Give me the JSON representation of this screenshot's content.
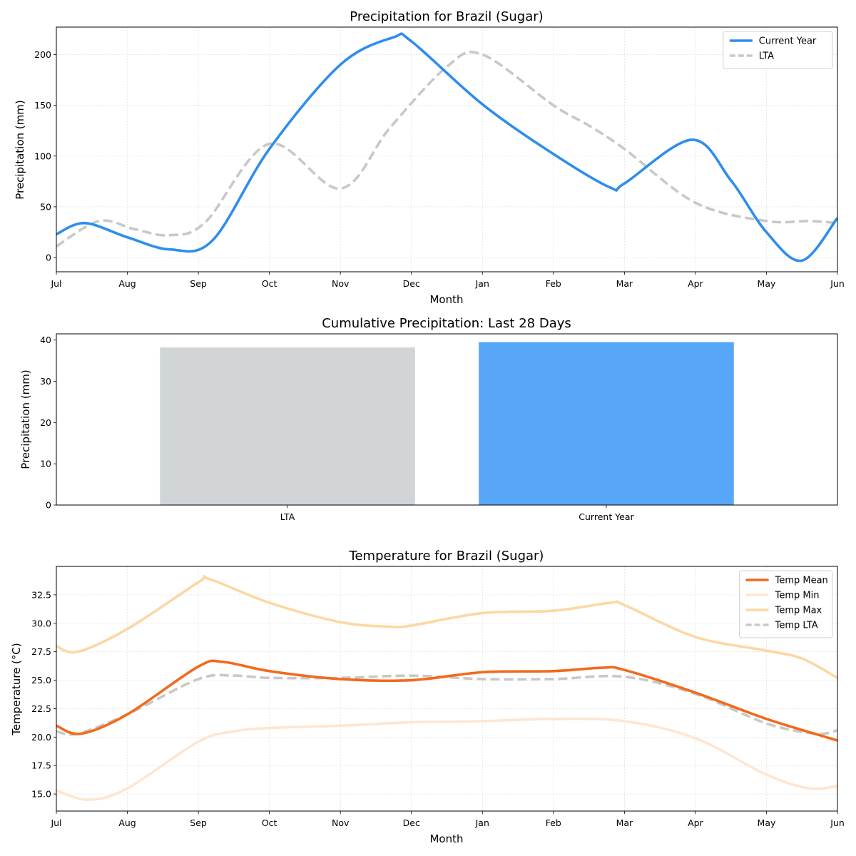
{
  "chart_data": [
    {
      "type": "line",
      "title": "Precipitation for Brazil (Sugar)",
      "xlabel": "Month",
      "ylabel": "Precipitation (mm)",
      "categories": [
        "Jul",
        "Aug",
        "Sep",
        "Oct",
        "Nov",
        "Dec",
        "Jan",
        "Feb",
        "Mar",
        "Apr",
        "May",
        "Jun"
      ],
      "ylim": [
        -14,
        227
      ],
      "yticks": [
        0,
        50,
        100,
        150,
        200
      ],
      "grid": true,
      "legend_position": "top-right",
      "series": [
        {
          "name": "Current Year",
          "color": "#2f8ded",
          "dash": false,
          "points": [
            [
              0,
              23
            ],
            [
              0.4,
              34
            ],
            [
              1,
              20
            ],
            [
              1.6,
              8
            ],
            [
              2.2,
              17
            ],
            [
              3,
              107
            ],
            [
              4,
              190
            ],
            [
              4.75,
              217
            ],
            [
              5,
              213
            ],
            [
              6,
              151
            ],
            [
              7,
              102
            ],
            [
              7.8,
              69
            ],
            [
              8,
              73
            ],
            [
              8.95,
              116
            ],
            [
              9.5,
              76
            ],
            [
              10,
              25
            ],
            [
              10.5,
              -3
            ],
            [
              11,
              39
            ]
          ]
        },
        {
          "name": "LTA",
          "color": "#c8c8c8",
          "dash": true,
          "points": [
            [
              0,
              11
            ],
            [
              0.6,
              36
            ],
            [
              1.1,
              28
            ],
            [
              1.6,
              22
            ],
            [
              2.1,
              35
            ],
            [
              3,
              112
            ],
            [
              4,
              68
            ],
            [
              4.7,
              128
            ],
            [
              5.5,
              188
            ],
            [
              6,
              200
            ],
            [
              7,
              150
            ],
            [
              7.5,
              130
            ],
            [
              8,
              107
            ],
            [
              9,
              54
            ],
            [
              10,
              36
            ],
            [
              10.6,
              36
            ],
            [
              11,
              34
            ]
          ]
        }
      ]
    },
    {
      "type": "bar",
      "title": "Cumulative Precipitation: Last 28 Days",
      "xlabel": "",
      "ylabel": "Precipitation (mm)",
      "categories": [
        "LTA",
        "Current Year"
      ],
      "values": [
        38.2,
        39.5
      ],
      "colors": [
        "#d1d5d8",
        "#58a6f8"
      ],
      "ylim": [
        0,
        41.5
      ],
      "yticks": [
        0,
        10,
        20,
        30,
        40
      ],
      "grid": false
    },
    {
      "type": "line",
      "title": "Temperature for Brazil (Sugar)",
      "xlabel": "Month",
      "ylabel": "Temperature (°C)",
      "categories": [
        "Jul",
        "Aug",
        "Sep",
        "Oct",
        "Nov",
        "Dec",
        "Jan",
        "Feb",
        "Mar",
        "Apr",
        "May",
        "Jun"
      ],
      "ylim": [
        13.5,
        35.0
      ],
      "yticks": [
        15.0,
        17.5,
        20.0,
        22.5,
        25.0,
        27.5,
        30.0,
        32.5
      ],
      "tick_format": "one-decimal",
      "grid": true,
      "legend_position": "top-right",
      "series": [
        {
          "name": "Temp Mean",
          "color": "#f26a1b",
          "dash": false,
          "points": [
            [
              0,
              21
            ],
            [
              0.35,
              20.3
            ],
            [
              1,
              22
            ],
            [
              2,
              26.2
            ],
            [
              2.35,
              26.6
            ],
            [
              3,
              25.8
            ],
            [
              4,
              25.1
            ],
            [
              5,
              25
            ],
            [
              6,
              25.7
            ],
            [
              7,
              25.8
            ],
            [
              7.7,
              26.1
            ],
            [
              8,
              25.9
            ],
            [
              9,
              23.9
            ],
            [
              10,
              21.6
            ],
            [
              11,
              19.7
            ]
          ]
        },
        {
          "name": "Temp Min",
          "color": "#fde6d3",
          "dash": false,
          "points": [
            [
              0,
              15.3
            ],
            [
              0.45,
              14.5
            ],
            [
              1,
              15.5
            ],
            [
              2,
              19.6
            ],
            [
              2.5,
              20.5
            ],
            [
              3,
              20.8
            ],
            [
              4,
              21
            ],
            [
              5,
              21.3
            ],
            [
              6,
              21.4
            ],
            [
              7,
              21.6
            ],
            [
              8,
              21.4
            ],
            [
              9,
              19.9
            ],
            [
              10,
              16.7
            ],
            [
              10.6,
              15.5
            ],
            [
              11,
              15.7
            ]
          ]
        },
        {
          "name": "Temp Max",
          "color": "#fbd8a3",
          "dash": false,
          "points": [
            [
              0,
              28
            ],
            [
              0.3,
              27.5
            ],
            [
              1,
              29.5
            ],
            [
              2,
              33.6
            ],
            [
              2.15,
              33.9
            ],
            [
              3,
              31.8
            ],
            [
              4,
              30.1
            ],
            [
              4.7,
              29.7
            ],
            [
              5,
              29.8
            ],
            [
              6,
              30.9
            ],
            [
              7,
              31.1
            ],
            [
              7.8,
              31.8
            ],
            [
              8,
              31.6
            ],
            [
              9,
              28.8
            ],
            [
              10,
              27.6
            ],
            [
              10.5,
              26.9
            ],
            [
              11,
              25.2
            ]
          ]
        },
        {
          "name": "Temp LTA",
          "color": "#c8c8c8",
          "dash": true,
          "points": [
            [
              0,
              20.5
            ],
            [
              0.3,
              20.3
            ],
            [
              1,
              22
            ],
            [
              2,
              25.1
            ],
            [
              2.5,
              25.4
            ],
            [
              3,
              25.2
            ],
            [
              4,
              25.2
            ],
            [
              5,
              25.4
            ],
            [
              6,
              25.1
            ],
            [
              7,
              25.1
            ],
            [
              8,
              25.3
            ],
            [
              9,
              23.8
            ],
            [
              10,
              21.2
            ],
            [
              10.7,
              20.3
            ],
            [
              11,
              20.6
            ]
          ]
        }
      ]
    }
  ]
}
